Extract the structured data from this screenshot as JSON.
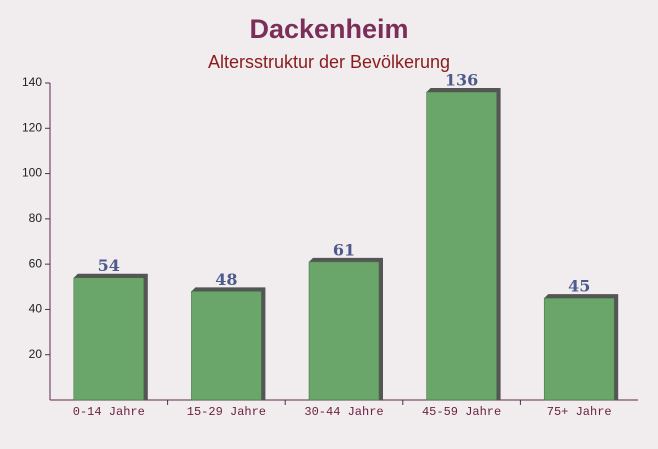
{
  "chart_data": {
    "type": "bar",
    "title": "Dackenheim",
    "subtitle": "Altersstruktur der Bevölkerung",
    "categories": [
      "0-14 Jahre",
      "15-29 Jahre",
      "30-44 Jahre",
      "45-59 Jahre",
      "75+ Jahre"
    ],
    "values": [
      54,
      48,
      61,
      136,
      45
    ],
    "color": "#6aa56a",
    "ylim": [
      0,
      140
    ],
    "yticks": [
      20,
      40,
      60,
      80,
      100,
      120,
      140
    ],
    "grid": false
  }
}
